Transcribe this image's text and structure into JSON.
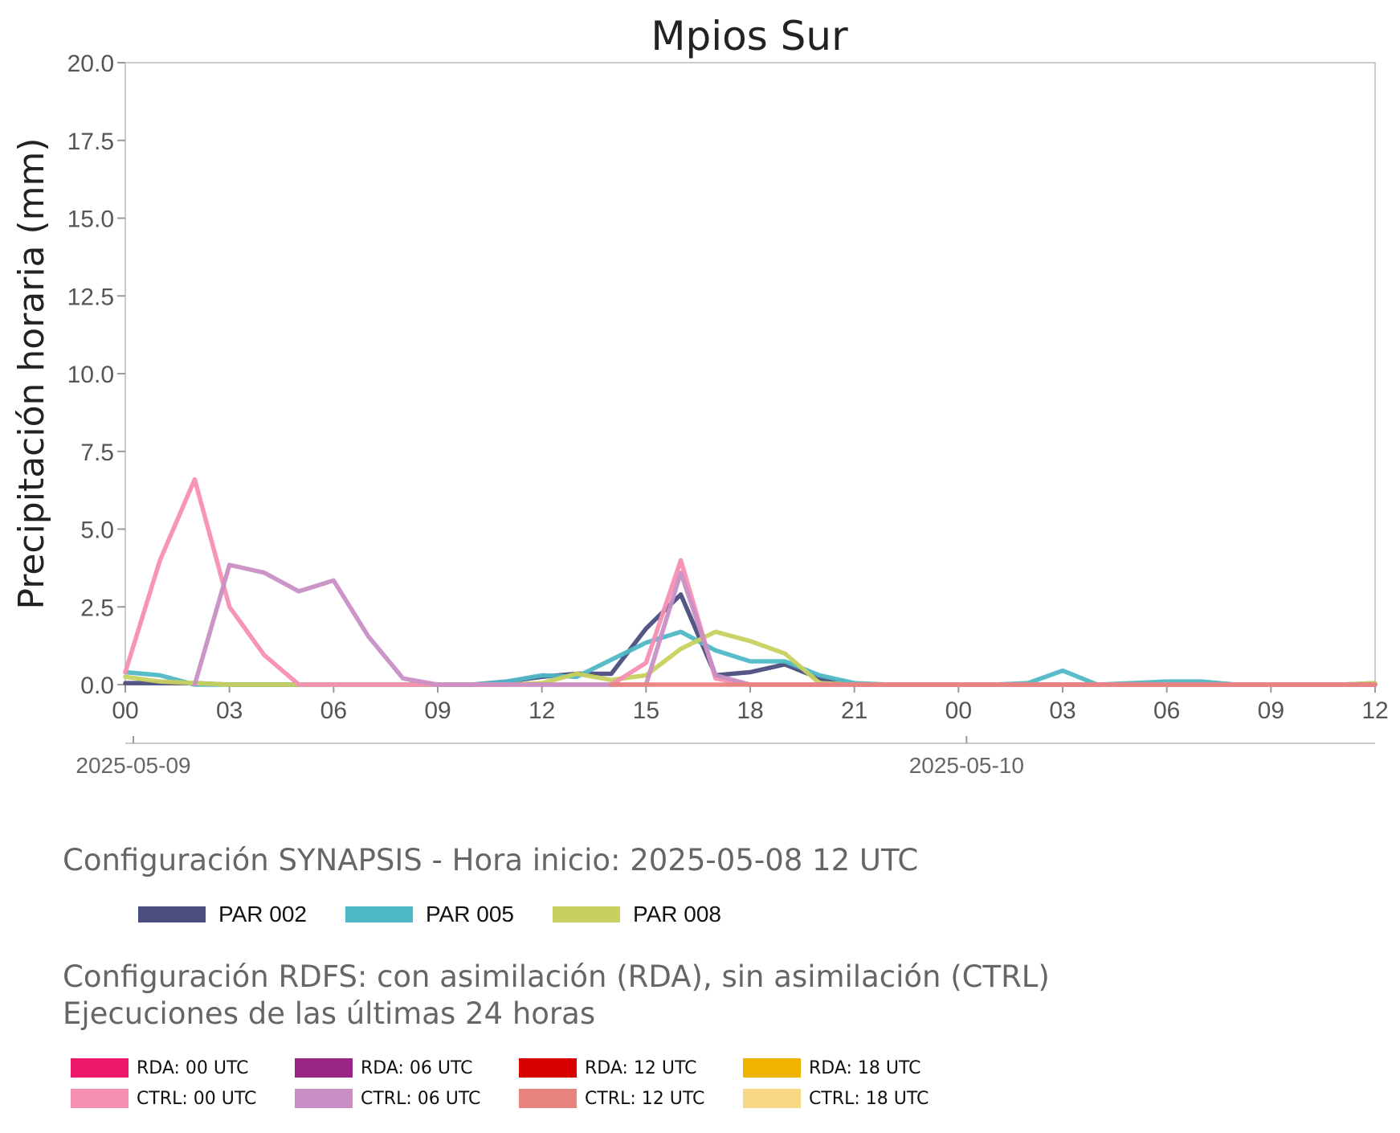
{
  "chart_data": {
    "type": "line",
    "title": "Mpios Sur",
    "xlabel": "",
    "ylabel": "Precipitación horaria (mm)",
    "ylim": [
      0,
      20
    ],
    "yticks": [
      "0.0",
      "2.5",
      "5.0",
      "7.5",
      "10.0",
      "12.5",
      "15.0",
      "17.5",
      "20.0"
    ],
    "x_hours": [
      0,
      36
    ],
    "xtick_labels": [
      "00",
      "03",
      "06",
      "09",
      "12",
      "15",
      "18",
      "21",
      "00",
      "03",
      "06",
      "09",
      "12"
    ],
    "date_labels": [
      {
        "label": "2025-05-09",
        "hour": 0
      },
      {
        "label": "2025-05-10",
        "hour": 24
      }
    ],
    "grid": false,
    "series": [
      {
        "name": "PAR 002",
        "color": "#4b4e7e",
        "x": [
          0,
          1,
          2,
          3,
          4,
          5,
          6,
          7,
          8,
          9,
          10,
          11,
          12,
          13,
          14,
          15,
          16,
          17,
          18,
          19,
          20,
          21,
          22,
          23,
          24,
          25,
          26,
          27,
          28,
          29,
          30,
          31,
          32,
          33,
          34,
          35,
          36
        ],
        "y": [
          0.05,
          0.05,
          0.05,
          0,
          0,
          0,
          0,
          0,
          0,
          0,
          0,
          0.1,
          0.25,
          0.35,
          0.35,
          1.8,
          2.9,
          0.3,
          0.4,
          0.65,
          0.2,
          0,
          0,
          0,
          0,
          0,
          0,
          0,
          0,
          0,
          0,
          0,
          0,
          0,
          0,
          0,
          0
        ]
      },
      {
        "name": "PAR 005",
        "color": "#4fb8c6",
        "x": [
          0,
          1,
          2,
          3,
          4,
          5,
          6,
          7,
          8,
          9,
          10,
          11,
          12,
          13,
          14,
          15,
          16,
          17,
          18,
          19,
          20,
          21,
          22,
          23,
          24,
          25,
          26,
          27,
          28,
          29,
          30,
          31,
          32,
          33,
          34,
          35,
          36
        ],
        "y": [
          0.4,
          0.3,
          0,
          0,
          0,
          0,
          0,
          0,
          0,
          0,
          0,
          0.1,
          0.3,
          0.25,
          0.8,
          1.35,
          1.7,
          1.1,
          0.75,
          0.75,
          0.3,
          0.05,
          0,
          0,
          0,
          0,
          0.05,
          0.45,
          0,
          0.05,
          0.1,
          0.1,
          0,
          0,
          0,
          0,
          0.05
        ]
      },
      {
        "name": "PAR 008",
        "color": "#c8d05f",
        "x": [
          0,
          1,
          2,
          3,
          4,
          5,
          6,
          7,
          8,
          9,
          10,
          11,
          12,
          13,
          14,
          15,
          16,
          17,
          18,
          19,
          20,
          21,
          22,
          23,
          24,
          25,
          26,
          27,
          28,
          29,
          30,
          31,
          32,
          33,
          34,
          35,
          36
        ],
        "y": [
          0.25,
          0.1,
          0.05,
          0,
          0,
          0,
          0,
          0,
          0,
          0,
          0,
          0,
          0.05,
          0.35,
          0.15,
          0.3,
          1.15,
          1.7,
          1.4,
          1.0,
          0.05,
          0,
          0,
          0,
          0,
          0,
          0,
          0,
          0,
          0,
          0,
          0,
          0,
          0,
          0,
          0,
          0.05
        ]
      },
      {
        "name": "CTRL: 00 UTC",
        "color": "#f58fb3",
        "x": [
          0,
          1,
          2,
          3,
          4,
          5,
          6,
          7,
          8,
          9,
          10,
          11,
          12,
          13,
          14,
          15,
          16,
          17,
          18,
          19,
          20,
          21,
          22,
          23,
          24,
          25,
          26,
          27,
          28,
          29,
          30,
          31,
          32,
          33,
          34,
          35,
          36
        ],
        "y": [
          0.4,
          4.0,
          6.6,
          2.5,
          0.95,
          0,
          0,
          0,
          0,
          0,
          0,
          0,
          0,
          0,
          0,
          0.7,
          4.0,
          0.2,
          0,
          0,
          0,
          0,
          0,
          0,
          0,
          0,
          0,
          0,
          0,
          0,
          0,
          0,
          0,
          0,
          0,
          0,
          0
        ]
      },
      {
        "name": "CTRL: 06 UTC",
        "color": "#c98fc4",
        "x": [
          2,
          3,
          4,
          5,
          6,
          7,
          8,
          9,
          10,
          11,
          12,
          13,
          14,
          15,
          16,
          17,
          18,
          19,
          20,
          21,
          22,
          23,
          24,
          25,
          26,
          27,
          28,
          29,
          30,
          31,
          32,
          33,
          34,
          35,
          36
        ],
        "y": [
          0,
          3.85,
          3.6,
          3.0,
          3.35,
          1.55,
          0.2,
          0,
          0,
          0,
          0,
          0,
          0,
          0,
          3.6,
          0.3,
          0,
          0,
          0,
          0,
          0,
          0,
          0,
          0,
          0,
          0,
          0,
          0,
          0,
          0,
          0,
          0,
          0,
          0,
          0
        ]
      },
      {
        "name": "CTRL: 12 UTC",
        "color": "#e9837e",
        "x": [
          14,
          15,
          16,
          17,
          18,
          19,
          20,
          21,
          22,
          23,
          24,
          25,
          26,
          27,
          28,
          29,
          30,
          31,
          32,
          33,
          34,
          35,
          36
        ],
        "y": [
          0,
          0,
          0,
          0,
          0,
          0,
          0,
          0,
          0,
          0,
          0,
          0,
          0,
          0,
          0,
          0,
          0,
          0,
          0,
          0,
          0,
          0,
          0
        ]
      }
    ],
    "legend": {
      "placement": "bottom",
      "synapsis_title": "Configuración SYNAPSIS - Hora inicio: 2025-05-08 12 UTC",
      "synapsis_items": [
        {
          "label": "PAR 002",
          "color": "#4b4e7e"
        },
        {
          "label": "PAR 005",
          "color": "#4fb8c6"
        },
        {
          "label": "PAR 008",
          "color": "#c8d05f"
        }
      ],
      "rdfs_title": "Configuración RDFS: con asimilación (RDA), sin asimilación (CTRL)\n Ejecuciones de las últimas 24 horas",
      "rdfs_items": [
        {
          "label": "RDA: 00 UTC",
          "color": "#f0186a"
        },
        {
          "label": "RDA: 06 UTC",
          "color": "#9a2484"
        },
        {
          "label": "RDA: 12 UTC",
          "color": "#d90000"
        },
        {
          "label": "RDA: 18 UTC",
          "color": "#f0b400"
        },
        {
          "label": "CTRL: 00 UTC",
          "color": "#f58fb3"
        },
        {
          "label": "CTRL: 06 UTC",
          "color": "#c98fc4"
        },
        {
          "label": "CTRL: 12 UTC",
          "color": "#e9837e"
        },
        {
          "label": "CTRL: 18 UTC",
          "color": "#f7d985"
        }
      ]
    }
  }
}
